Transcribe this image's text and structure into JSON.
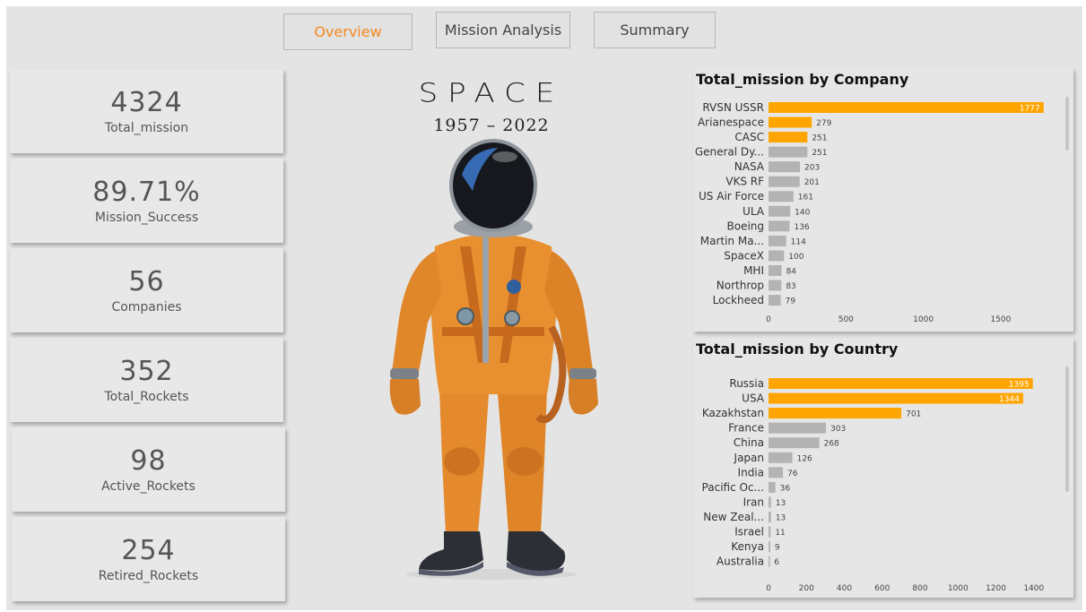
{
  "nav": {
    "tabs": [
      {
        "label": "Overview",
        "active": true
      },
      {
        "label": "Mission Analysis",
        "active": false
      },
      {
        "label": "Summary",
        "active": false
      }
    ]
  },
  "kpis": [
    {
      "value": "4324",
      "label": "Total_mission"
    },
    {
      "value": "89.71%",
      "label": "Mission_Success"
    },
    {
      "value": "56",
      "label": "Companies"
    },
    {
      "value": "352",
      "label": "Total_Rockets"
    },
    {
      "value": "98",
      "label": "Active_Rockets"
    },
    {
      "value": "254",
      "label": "Retired_Rockets"
    }
  ],
  "hero": {
    "logo": "SPACE",
    "years": "1957 – 2022"
  },
  "colors": {
    "highlight": "#FFA500",
    "bar": "#B3B3B3",
    "accent": "#f4891f"
  },
  "chart_data": [
    {
      "type": "bar",
      "orientation": "horizontal",
      "title": "Total_mission by Company",
      "categories": [
        "RVSN USSR",
        "Arianespace",
        "CASC",
        "General Dy...",
        "NASA",
        "VKS RF",
        "US Air Force",
        "ULA",
        "Boeing",
        "Martin Ma...",
        "SpaceX",
        "MHI",
        "Northrop",
        "Lockheed"
      ],
      "values": [
        1777,
        279,
        251,
        251,
        203,
        201,
        161,
        140,
        136,
        114,
        100,
        84,
        83,
        79
      ],
      "highlighted_count": 3,
      "xticks": [
        0,
        500,
        1000,
        1500
      ],
      "xlim": [
        0,
        1900
      ]
    },
    {
      "type": "bar",
      "orientation": "horizontal",
      "title": "Total_mission by Country",
      "categories": [
        "Russia",
        "USA",
        "Kazakhstan",
        "France",
        "China",
        "Japan",
        "India",
        "Pacific Oc...",
        "Iran",
        "New Zeal...",
        "Israel",
        "Kenya",
        "Australia"
      ],
      "values": [
        1395,
        1344,
        701,
        303,
        268,
        126,
        76,
        36,
        13,
        13,
        11,
        9,
        6
      ],
      "highlighted_count": 3,
      "xticks": [
        0,
        200,
        400,
        600,
        800,
        1000,
        1200,
        1400
      ],
      "xlim": [
        0,
        1420
      ]
    }
  ]
}
